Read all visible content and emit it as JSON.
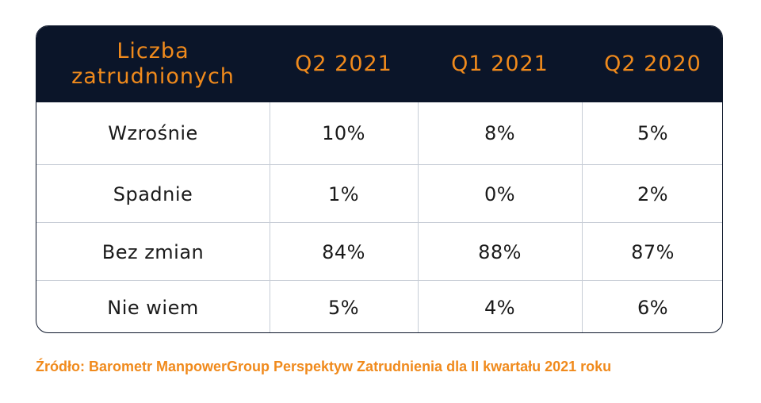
{
  "colors": {
    "header_bg": "#0b1529",
    "accent": "#f08a1c",
    "text": "#1a1a1a",
    "grid": "#c7cdd6"
  },
  "chart_data": {
    "type": "table",
    "columns": [
      "Liczba zatrudnionych",
      "Q2 2021",
      "Q1 2021",
      "Q2 2020"
    ],
    "header_first_line1": "Liczba",
    "header_first_line2": "zatrudnionych",
    "rows": [
      {
        "label": "Wzrośnie",
        "values": [
          "10%",
          "8%",
          "5%"
        ]
      },
      {
        "label": "Spadnie",
        "values": [
          "1%",
          "0%",
          "2%"
        ]
      },
      {
        "label": "Bez zmian",
        "values": [
          "84%",
          "88%",
          "87%"
        ]
      },
      {
        "label": "Nie wiem",
        "values": [
          "5%",
          "4%",
          "6%"
        ]
      }
    ]
  },
  "source": "Źródło: Barometr ManpowerGroup Perspektyw Zatrudnienia dla II kwartału 2021 roku"
}
